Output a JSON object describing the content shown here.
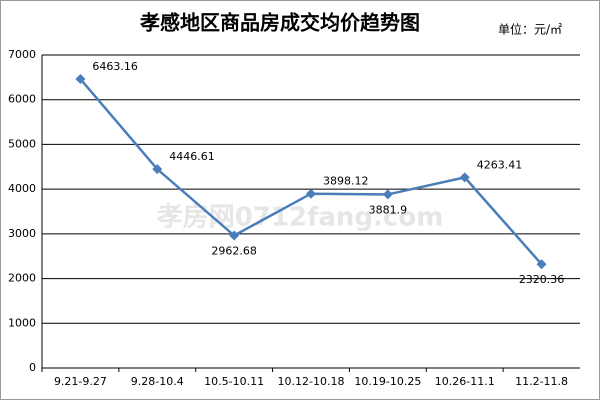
{
  "chart_data": {
    "type": "line",
    "title": "孝感地区商品房成交均价趋势图",
    "unit_note": "单位：元/㎡",
    "watermark": "孝房网0712fang.com",
    "categories": [
      "9.21-9.27",
      "9.28-10.4",
      "10.5-10.11",
      "10.12-10.18",
      "10.19-10.25",
      "10.26-11.1",
      "11.2-11.8"
    ],
    "values": [
      6463.16,
      4446.61,
      2962.68,
      3898.12,
      3881.9,
      4263.41,
      2320.36
    ],
    "color": "#4a7ebb",
    "ylim": [
      0,
      7000
    ],
    "yticks": [
      0,
      1000,
      2000,
      3000,
      4000,
      5000,
      6000,
      7000
    ],
    "grid": true
  }
}
